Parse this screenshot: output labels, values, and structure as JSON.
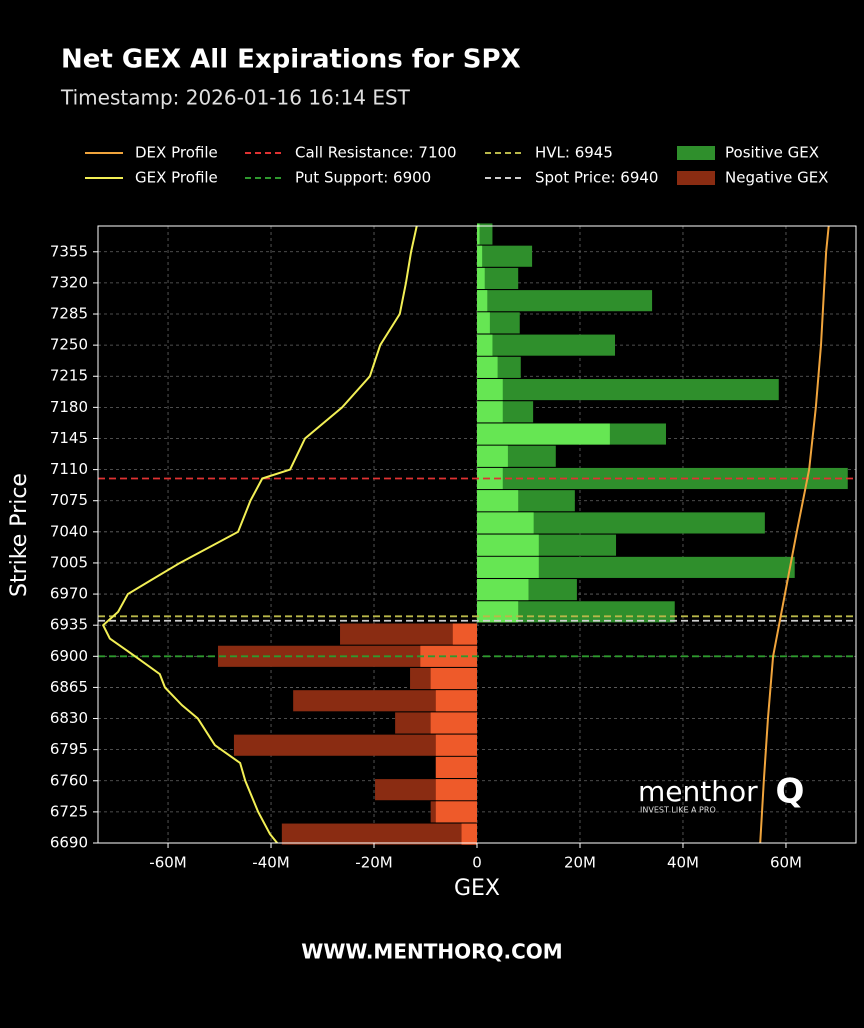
{
  "chart_data": {
    "type": "bar",
    "orientation": "horizontal",
    "title": "Net GEX All Expirations for SPX",
    "subtitle": "Timestamp: 2026-01-16 16:14 EST",
    "xlabel": "GEX",
    "ylabel": "Strike Price",
    "strikes": [
      7375,
      7350,
      7325,
      7300,
      7275,
      7250,
      7225,
      7200,
      7175,
      7150,
      7125,
      7100,
      7075,
      7050,
      7025,
      7000,
      6975,
      6950,
      6925,
      6900,
      6875,
      6850,
      6825,
      6800,
      6775,
      6750,
      6725,
      6700
    ],
    "series": [
      {
        "name": "Positive GEX",
        "color": "#2f8f2c",
        "values": [
          3,
          10.7,
          8,
          34,
          8.3,
          26.8,
          8.5,
          58.6,
          10.9,
          36.7,
          15.3,
          72,
          19,
          55.9,
          27,
          61.7,
          19.4,
          38.4,
          null,
          null,
          null,
          null,
          null,
          null,
          null,
          null,
          null,
          null
        ]
      },
      {
        "name": "Negative GEX",
        "color": "#8a2c12",
        "values": [
          null,
          null,
          null,
          null,
          null,
          null,
          null,
          null,
          null,
          null,
          null,
          null,
          null,
          null,
          null,
          null,
          null,
          null,
          -26.6,
          -50.3,
          -13,
          -35.7,
          -15.9,
          -47.2,
          -8,
          -19.8,
          -9,
          -37.9
        ]
      },
      {
        "color": "#66e653",
        "values": [
          0.5,
          1,
          1.5,
          2,
          2.5,
          3,
          4,
          5,
          5,
          25.8,
          6,
          5,
          8,
          11,
          12,
          12,
          10,
          8,
          null,
          null,
          null,
          null,
          null,
          null,
          null,
          null,
          null,
          null
        ]
      },
      {
        "color": "#ee5a2a",
        "values": [
          null,
          null,
          null,
          null,
          null,
          null,
          null,
          null,
          null,
          null,
          null,
          null,
          null,
          null,
          null,
          null,
          null,
          null,
          -4.7,
          -11,
          -9,
          -8,
          -9,
          -8,
          -8,
          -8,
          -8,
          -3
        ]
      }
    ],
    "lines": [
      {
        "name": "DEX Profile",
        "color": "#f0a43c",
        "strikes": [
          7384,
          7355,
          7250,
          7180,
          7110,
          7040,
          6970,
          6900,
          6830,
          6760,
          6690
        ],
        "values": [
          68.3,
          67.8,
          66.8,
          65.8,
          64.5,
          62.1,
          59.8,
          57.5,
          56.5,
          55.7,
          55
        ]
      },
      {
        "name": "GEX Profile",
        "color": "#f2ef55",
        "strikes": [
          7384,
          7355,
          7320,
          7285,
          7250,
          7215,
          7180,
          7145,
          7110,
          7100,
          7075,
          7040,
          7005,
          6985,
          6970,
          6950,
          6935,
          6920,
          6900,
          6880,
          6865,
          6845,
          6830,
          6800,
          6780,
          6760,
          6725,
          6700,
          6690
        ],
        "values": [
          -11.7,
          -12.8,
          -13.8,
          -15,
          -18.8,
          -20.8,
          -26.2,
          -33.4,
          -36.3,
          -41.7,
          -44,
          -46.4,
          -57.7,
          -63.5,
          -67.8,
          -69.7,
          -72.6,
          -71.3,
          -66.4,
          -61.6,
          -60.6,
          -57.3,
          -54.2,
          -50.9,
          -46,
          -45,
          -42.5,
          -40.2,
          -38.8
        ]
      }
    ],
    "levels": [
      {
        "label": "Call Resistance: 7100",
        "value": 7100,
        "color": "#e03232"
      },
      {
        "label": "Put Support: 6900",
        "value": 6900,
        "color": "#2e9a2e"
      },
      {
        "label": "HVL: 6945",
        "value": 6945,
        "color": "#b9b84a"
      },
      {
        "label": "Spot Price: 6940",
        "value": 6940,
        "color": "#cfcfcf"
      }
    ],
    "xlim": [
      -73.6,
      73.6
    ],
    "ylim": [
      6690,
      7384
    ],
    "xticks": [
      {
        "value": -60,
        "label": "-60M"
      },
      {
        "value": -40,
        "label": "-40M"
      },
      {
        "value": -20,
        "label": "-20M"
      },
      0,
      {
        "value": 20,
        "label": "20M"
      },
      {
        "value": 40,
        "label": "40M"
      },
      {
        "value": 60,
        "label": "60M"
      }
    ],
    "yticks": [
      6690,
      6725,
      6760,
      6795,
      6830,
      6865,
      6900,
      6935,
      6970,
      7005,
      7040,
      7075,
      7110,
      7145,
      7180,
      7215,
      7250,
      7285,
      7320,
      7355
    ],
    "grid": true
  },
  "logo": {
    "text": "menthor",
    "mark": "Q",
    "tagline": "INVEST LIKE A PRO"
  },
  "footer": "WWW.MENTHORQ.COM"
}
